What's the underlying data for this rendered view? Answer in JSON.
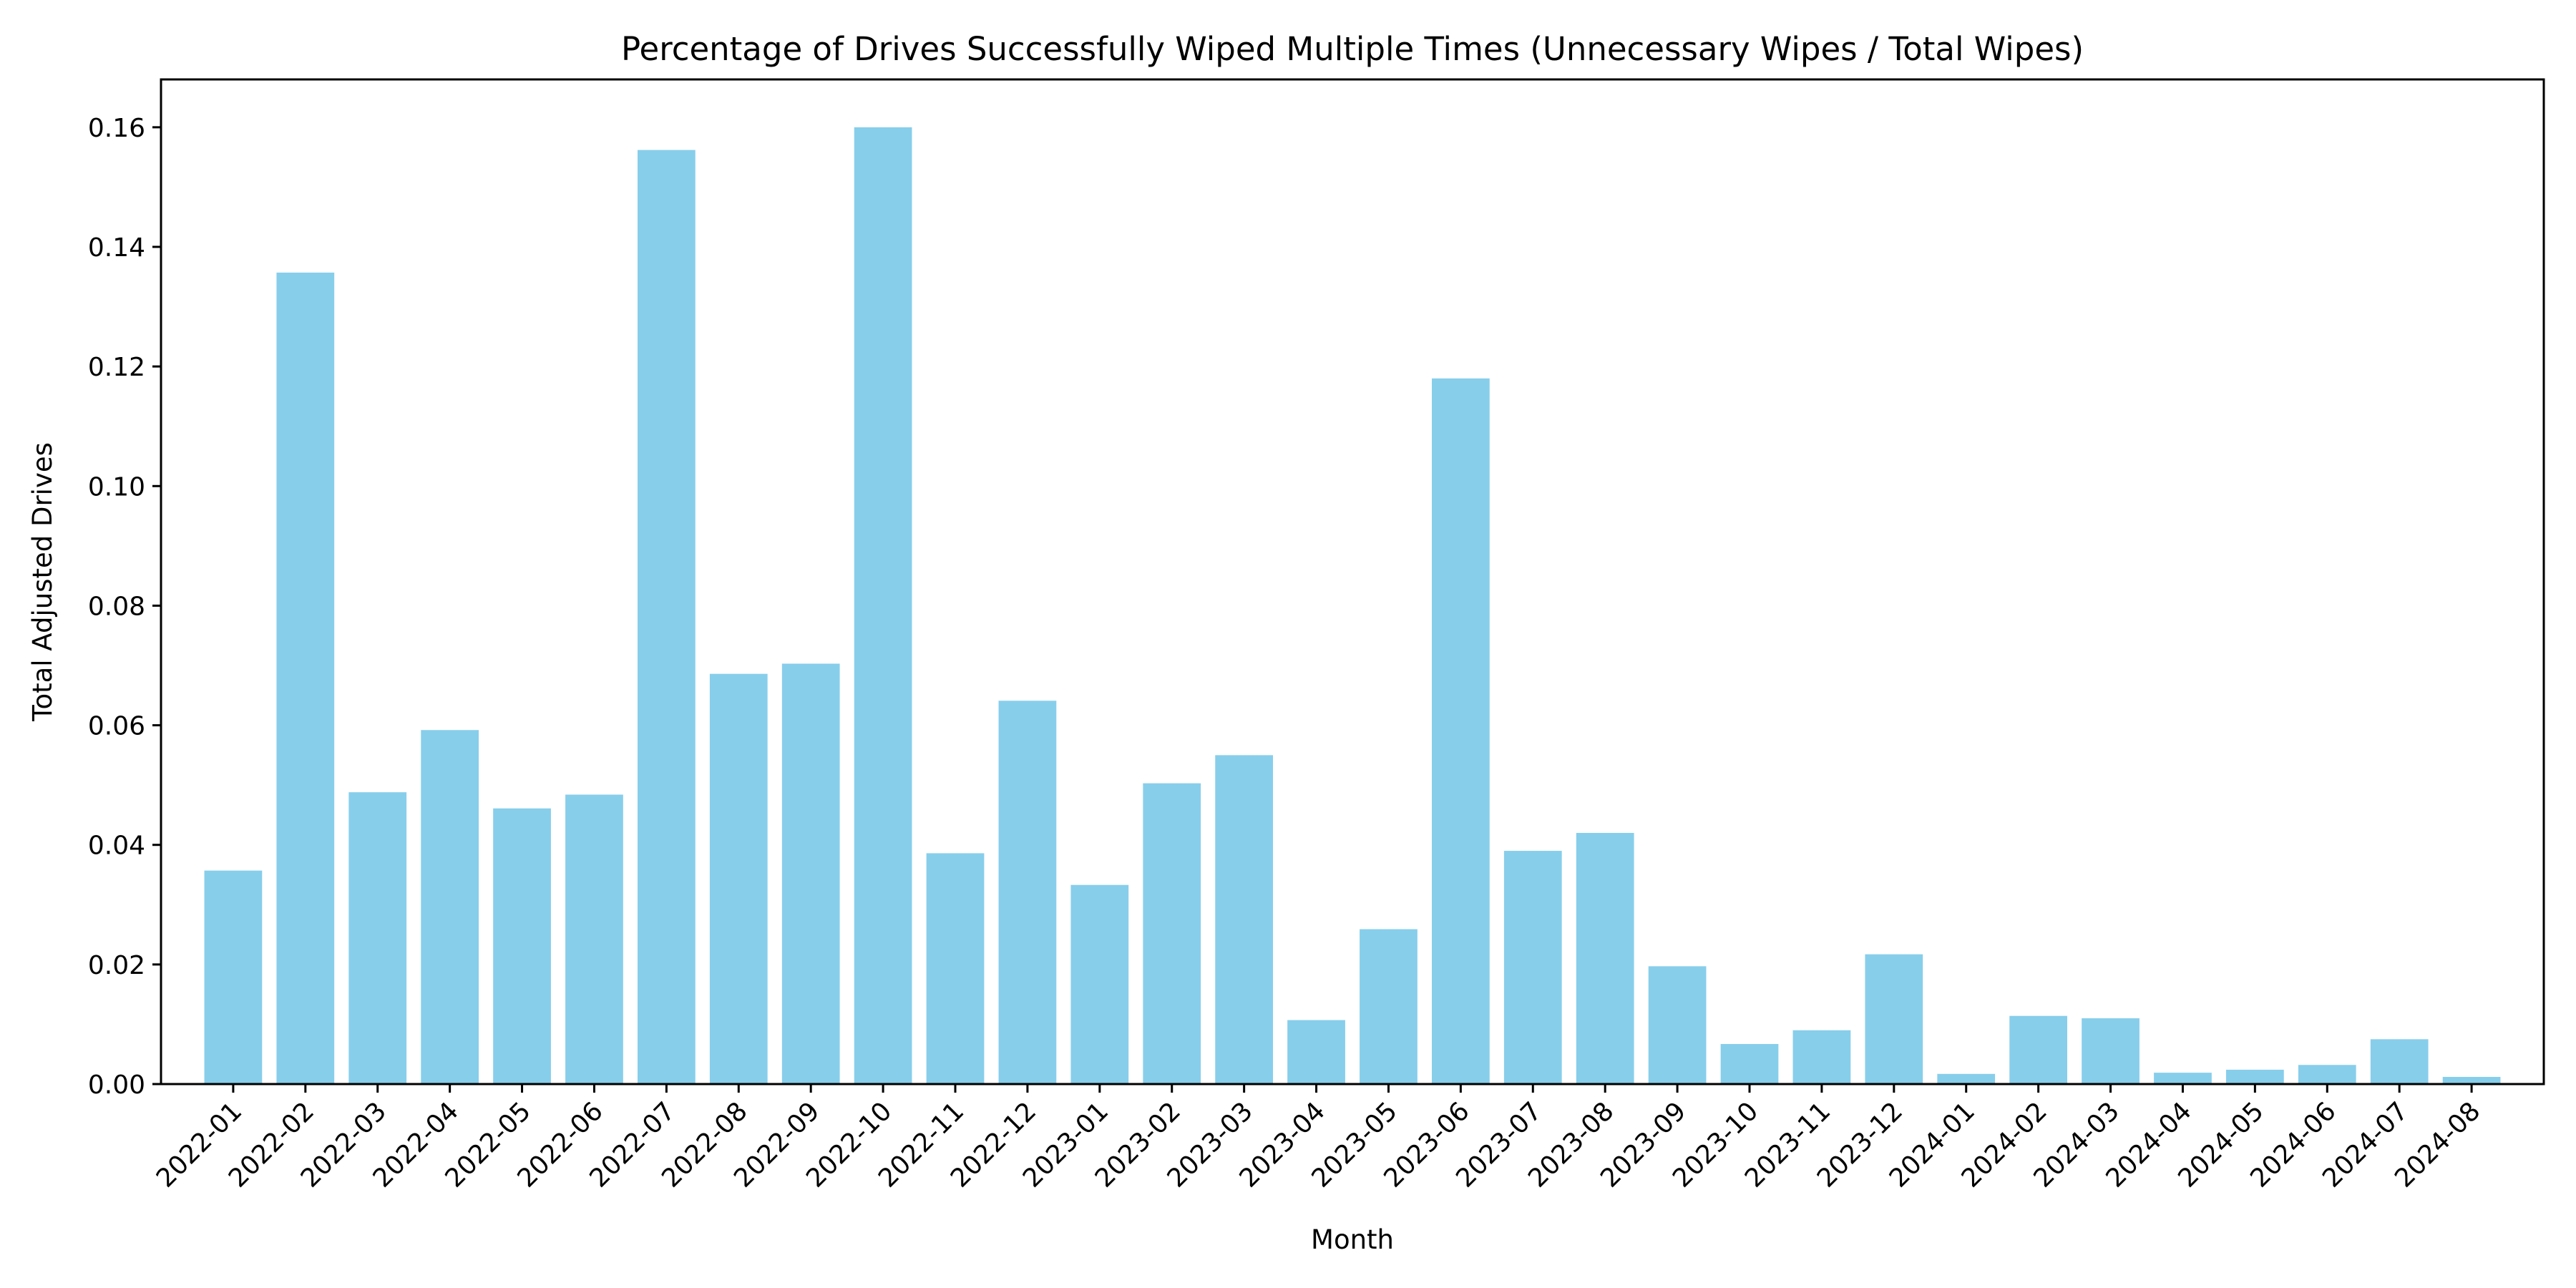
{
  "colors": {
    "bar": "#87ceeb",
    "axis": "#000000",
    "background": "#ffffff"
  },
  "chart_data": {
    "type": "bar",
    "title": "Percentage of Drives Successfully Wiped Multiple Times (Unnecessary Wipes / Total Wipes)",
    "xlabel": "Month",
    "ylabel": "Total Adjusted Drives",
    "ylim": [
      0,
      0.168
    ],
    "yticks": [
      0.0,
      0.02,
      0.04,
      0.06,
      0.08,
      0.1,
      0.12,
      0.14,
      0.16
    ],
    "ytick_labels": [
      "0.00",
      "0.02",
      "0.04",
      "0.06",
      "0.08",
      "0.10",
      "0.12",
      "0.14",
      "0.16"
    ],
    "grid": false,
    "legend": "none",
    "x_tick_rotation_deg": 45,
    "categories": [
      "2022-01",
      "2022-02",
      "2022-03",
      "2022-04",
      "2022-05",
      "2022-06",
      "2022-07",
      "2022-08",
      "2022-09",
      "2022-10",
      "2022-11",
      "2022-12",
      "2023-01",
      "2023-02",
      "2023-03",
      "2023-04",
      "2023-05",
      "2023-06",
      "2023-07",
      "2023-08",
      "2023-09",
      "2023-10",
      "2023-11",
      "2023-12",
      "2024-01",
      "2024-02",
      "2024-03",
      "2024-04",
      "2024-05",
      "2024-06",
      "2024-07",
      "2024-08"
    ],
    "values": [
      0.0357,
      0.1357,
      0.0488,
      0.0592,
      0.0461,
      0.0484,
      0.1562,
      0.0686,
      0.0703,
      0.16,
      0.0386,
      0.0641,
      0.0333,
      0.0503,
      0.055,
      0.0107,
      0.0259,
      0.118,
      0.039,
      0.042,
      0.0197,
      0.0067,
      0.009,
      0.0217,
      0.0017,
      0.0114,
      0.011,
      0.0019,
      0.0024,
      0.0032,
      0.0075,
      0.0012
    ]
  }
}
